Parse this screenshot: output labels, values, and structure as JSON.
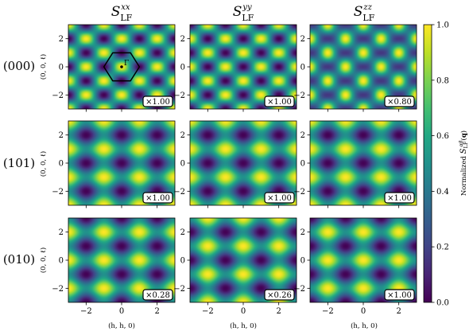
{
  "chart_data": {
    "type": "heatmap",
    "columns": [
      {
        "math": "S",
        "sub": "LF",
        "sup": "xx"
      },
      {
        "math": "S",
        "sub": "LF",
        "sup": "yy"
      },
      {
        "math": "S",
        "sub": "LF",
        "sup": "zz"
      }
    ],
    "rows": [
      "(000)",
      "(101)",
      "(010)"
    ],
    "ylabel": "(0, 0, ℓ)",
    "xlabel": "(h, h, 0)",
    "x_ticks": [
      "−2",
      "0",
      "2"
    ],
    "y_ticks": [
      "2",
      "0",
      "−2"
    ],
    "xlim": [
      -3,
      3
    ],
    "ylim": [
      -3,
      3
    ],
    "scale_badges": [
      [
        "×1.00",
        "×1.00",
        "×0.80"
      ],
      [
        "×1.00",
        "×1.00",
        "×1.00"
      ],
      [
        "×0.28",
        "×0.26",
        "×1.00"
      ]
    ],
    "brillouin_zone_label": "Γ",
    "colorbar": {
      "label": "Normalized S_LF^{αβ}(q)",
      "ticks": [
        "0.0",
        "0.2",
        "0.4",
        "0.6",
        "0.8",
        "1.0"
      ],
      "range": [
        0,
        1
      ],
      "colormap": "viridis"
    },
    "panel_patterns": [
      [
        "A",
        "A_inv",
        "D"
      ],
      [
        "C",
        "C",
        "C"
      ],
      [
        "B",
        "E",
        "F"
      ]
    ]
  }
}
